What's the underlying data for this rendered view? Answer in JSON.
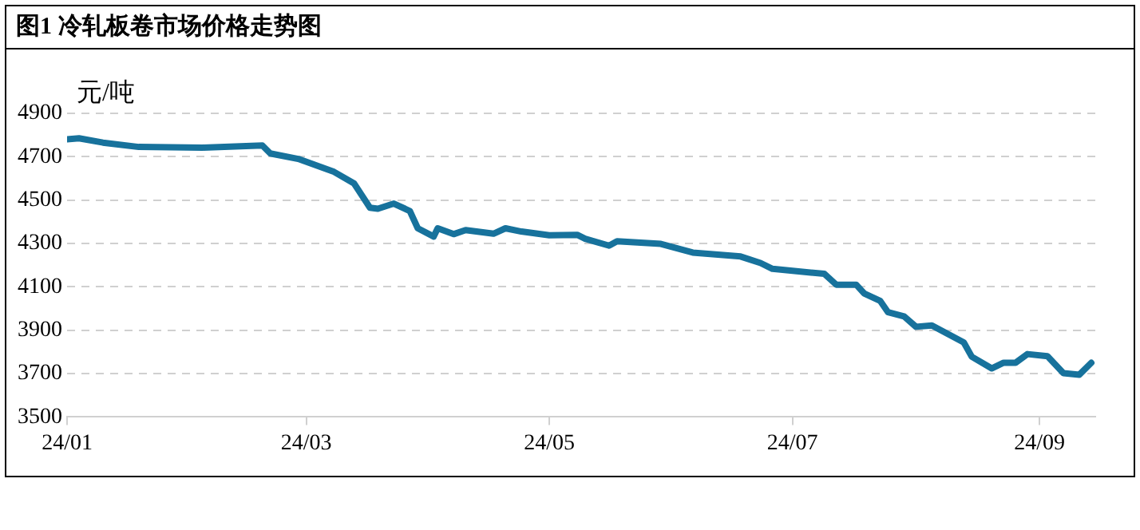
{
  "chart_data": {
    "type": "line",
    "title": "图1  冷轧板卷市场价格走势图",
    "ylabel": "元/吨",
    "xlim": [
      "--01-01",
      "--09-15"
    ],
    "xticks": [
      {
        "value": "--01-01",
        "label": "24/01"
      },
      {
        "value": "--03-01",
        "label": "24/03"
      },
      {
        "value": "--05-01",
        "label": "24/05"
      },
      {
        "value": "--07-01",
        "label": "24/07"
      },
      {
        "value": "--09-01",
        "label": "24/09"
      }
    ],
    "ylim": [
      3500,
      4900
    ],
    "yticks": [
      3500,
      3700,
      3900,
      4100,
      4300,
      4500,
      4700,
      4900
    ],
    "grid": "y",
    "legend": false,
    "marker": "none",
    "line_style": "solid",
    "series": [
      {
        "color": "#17729c",
        "x": [
          "--01-01",
          "--01-04",
          "--01-10",
          "--01-19",
          "--02-04",
          "--02-19",
          "--02-21",
          "--02-28",
          "--03-08",
          "--03-13",
          "--03-17",
          "--03-19",
          "--03-23",
          "--03-27",
          "--03-29",
          "--04-02",
          "--04-03",
          "--04-07",
          "--04-10",
          "--04-17",
          "--04-20",
          "--04-24",
          "--05-01",
          "--05-08",
          "--05-10",
          "--05-16",
          "--05-18",
          "--05-29",
          "--06-06",
          "--06-18",
          "--06-23",
          "--06-26",
          "--07-09",
          "--07-12",
          "--07-17",
          "--07-19",
          "--07-23",
          "--07-25",
          "--07-29",
          "--08-01",
          "--08-05",
          "--08-13",
          "--08-15",
          "--08-20",
          "--08-23",
          "--08-26",
          "--08-29",
          "--09-03",
          "--09-07",
          "--09-11",
          "--09-14"
        ],
        "values": [
          4780,
          4785,
          4765,
          4745,
          4742,
          4752,
          4715,
          4690,
          4630,
          4577,
          4465,
          4460,
          4484,
          4450,
          4370,
          4332,
          4370,
          4343,
          4362,
          4345,
          4370,
          4355,
          4338,
          4340,
          4322,
          4290,
          4310,
          4298,
          4258,
          4240,
          4210,
          4183,
          4160,
          4110,
          4110,
          4070,
          4036,
          3983,
          3964,
          3916,
          3922,
          3844,
          3778,
          3724,
          3750,
          3750,
          3790,
          3780,
          3702,
          3695,
          3750
        ]
      }
    ]
  }
}
